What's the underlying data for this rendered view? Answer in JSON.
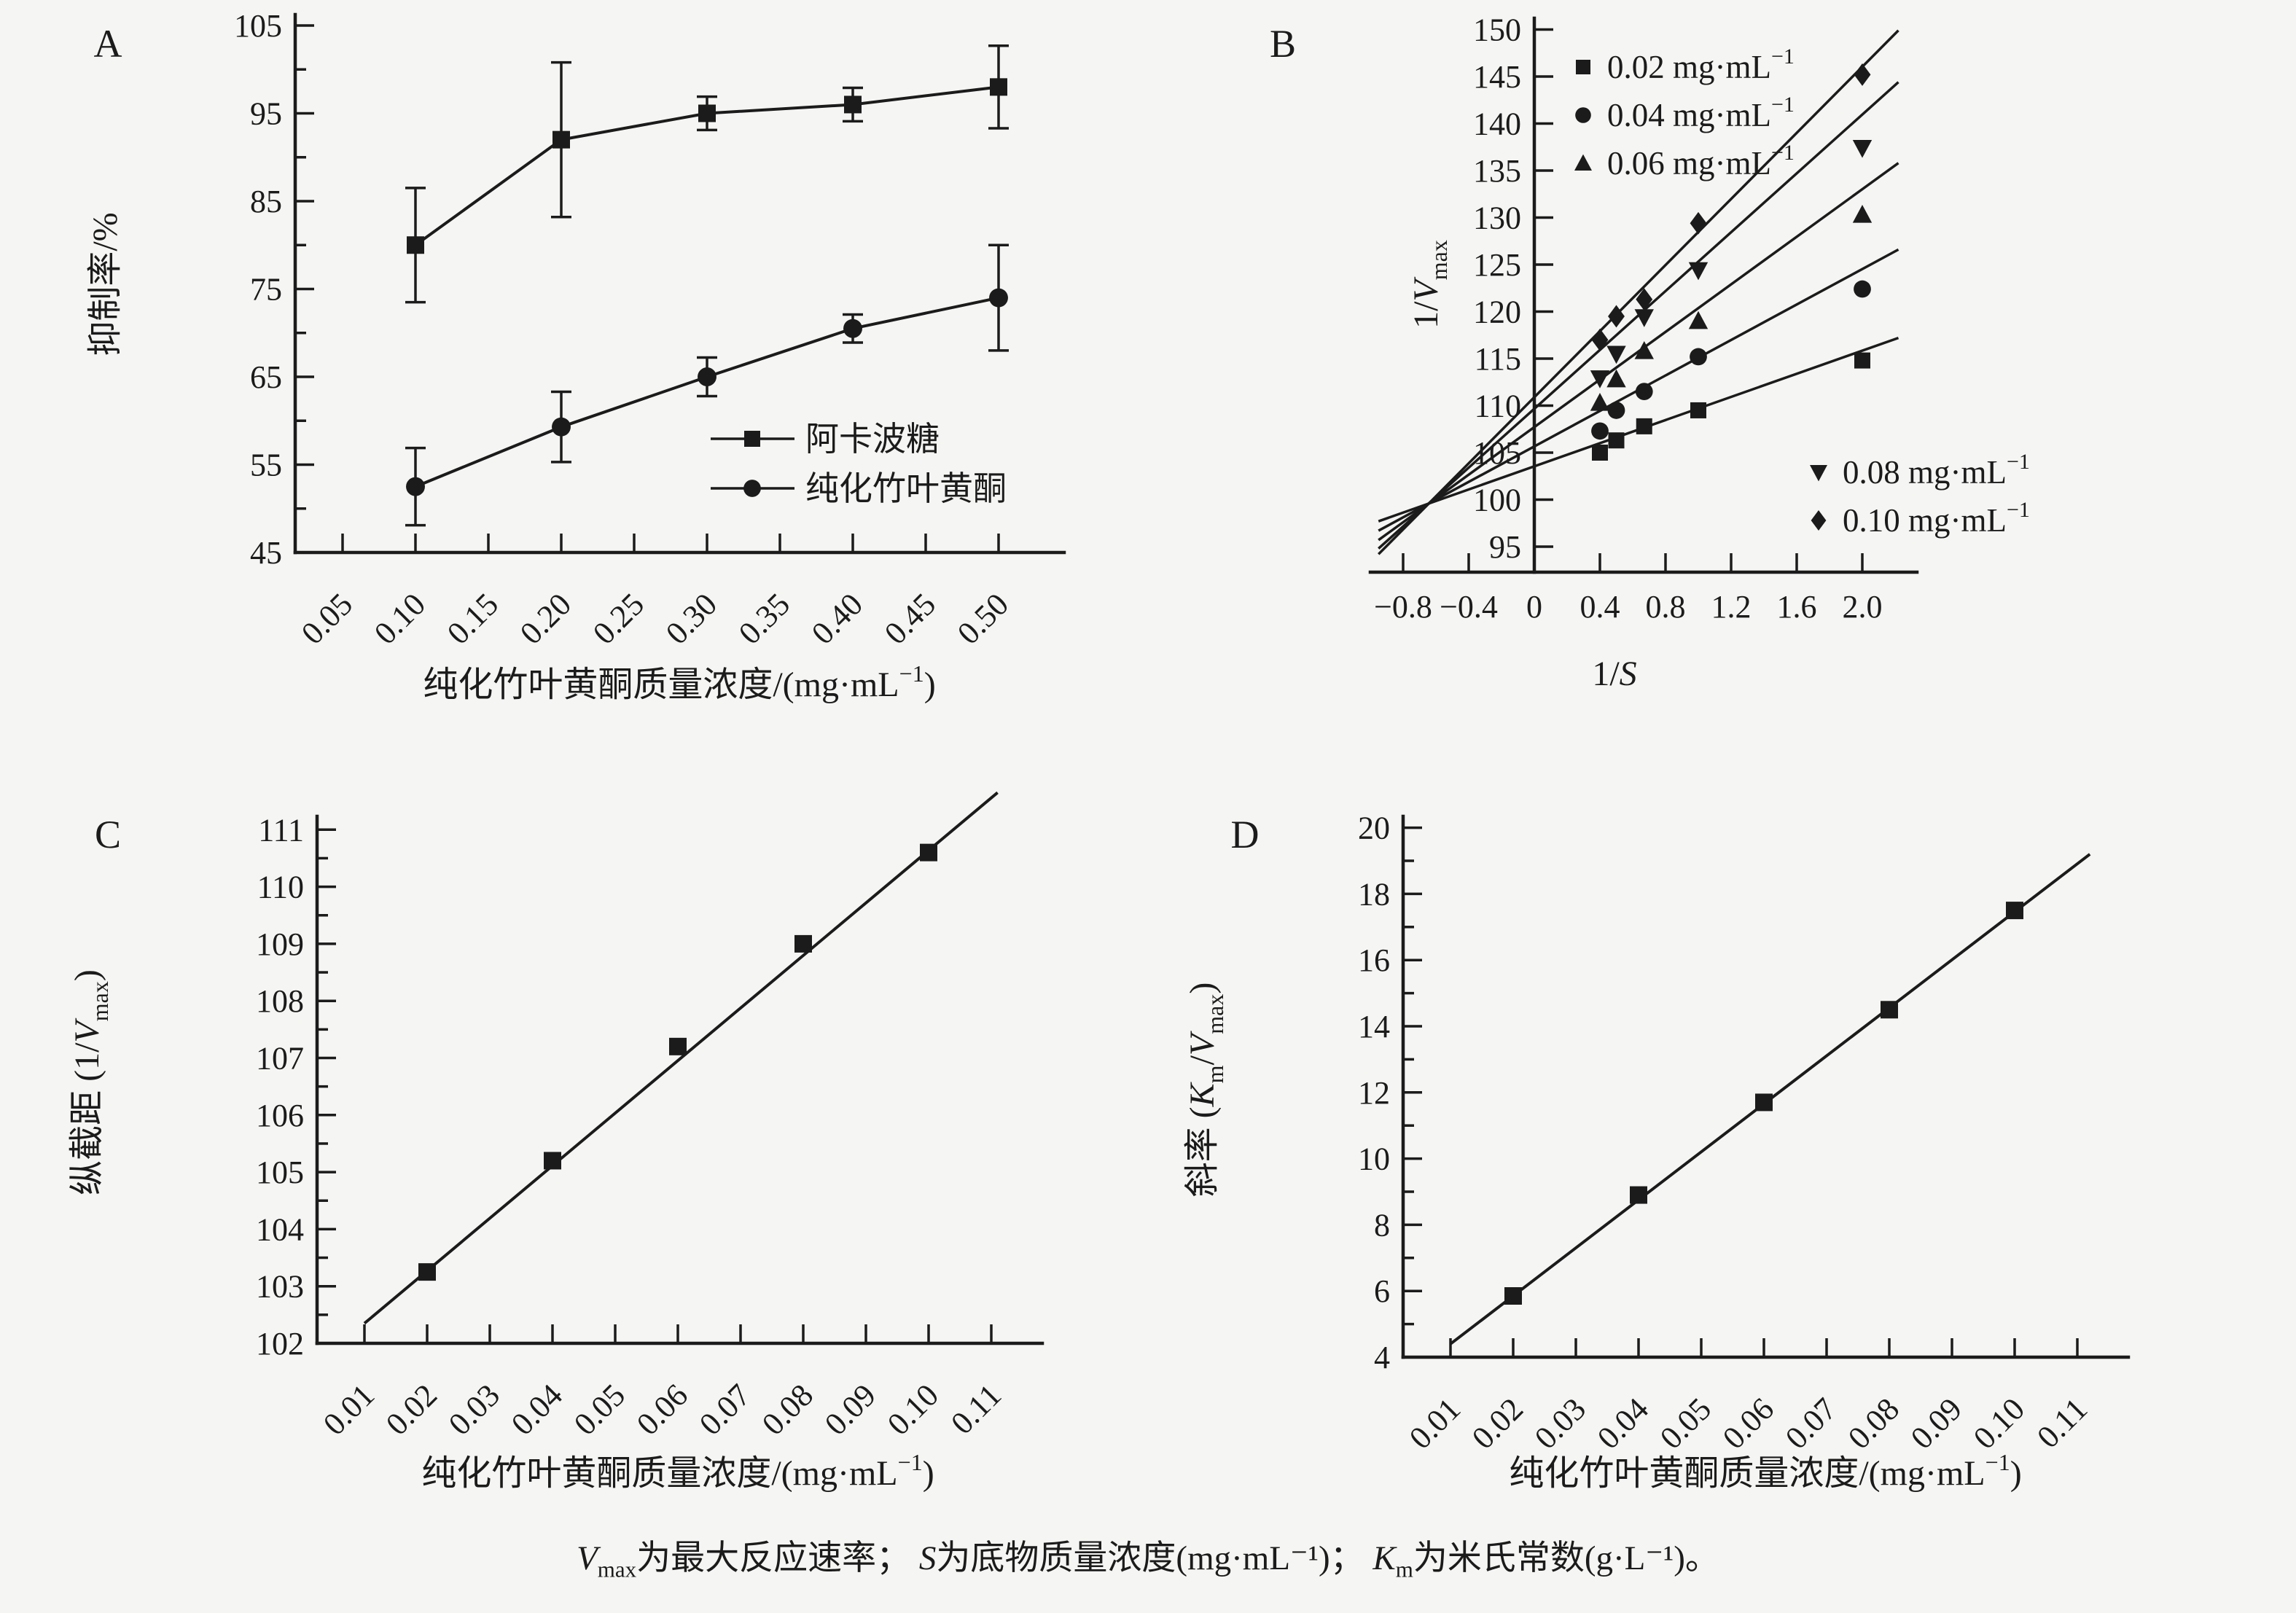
{
  "figure": {
    "background": "#f5f5f3",
    "ink": "#1b1b1b",
    "caption_text": "Vmax为最大反应速率； S为底物质量浓度(mg·mL⁻¹)； Km为米氏常数(g·L⁻¹)。",
    "caption": {
      "v": {
        "sym": "V",
        "sub": "max",
        "text": "为最大反应速率； "
      },
      "s": {
        "sym": "S",
        "text": "为底物质量浓度(mg·mL⁻¹)； "
      },
      "k": {
        "sym": "K",
        "sub": "m",
        "text": "为米氏常数(g·L⁻¹)。"
      }
    }
  },
  "chart_data": [
    {
      "id": "A",
      "type": "line",
      "panel_label": "A",
      "ylabel_text": "抑制率/%",
      "xlabel_text": "纯化竹叶黄酮质量浓度/(mg·mL⁻¹)",
      "ylabel_parts": [
        {
          "t": "抑制率/%"
        }
      ],
      "xlabel_parts": [
        {
          "t": "纯化竹叶黄酮质量浓度/(mg·mL"
        },
        {
          "t": "−1",
          "sup": true
        },
        {
          "t": ")"
        }
      ],
      "ylim": [
        45,
        105
      ],
      "xlim": [
        0.05,
        0.5
      ],
      "grid": false,
      "y_ticks": [
        {
          "v": 45,
          "l": "45"
        },
        {
          "v": 55,
          "l": "55"
        },
        {
          "v": 65,
          "l": "65"
        },
        {
          "v": 75,
          "l": "75"
        },
        {
          "v": 85,
          "l": "85"
        },
        {
          "v": 95,
          "l": "95"
        },
        {
          "v": 105,
          "l": "105"
        }
      ],
      "y_minor": [
        50,
        60,
        70,
        80,
        90,
        100
      ],
      "x_ticks": [
        {
          "v": 0.05,
          "l": "0.05"
        },
        {
          "v": 0.1,
          "l": "0.10"
        },
        {
          "v": 0.15,
          "l": "0.15"
        },
        {
          "v": 0.2,
          "l": "0.20"
        },
        {
          "v": 0.25,
          "l": "0.25"
        },
        {
          "v": 0.3,
          "l": "0.30"
        },
        {
          "v": 0.35,
          "l": "0.35"
        },
        {
          "v": 0.4,
          "l": "0.40"
        },
        {
          "v": 0.45,
          "l": "0.45"
        },
        {
          "v": 0.5,
          "l": "0.50"
        }
      ],
      "legend_position": "inside-right-middle",
      "series": [
        {
          "name": "阿卡波糖",
          "marker": "square",
          "x": [
            0.1,
            0.2,
            0.3,
            0.4,
            0.5
          ],
          "y": [
            80,
            92,
            95,
            96,
            98
          ],
          "err": [
            6.5,
            8.8,
            1.9,
            1.9,
            4.7
          ]
        },
        {
          "name": "纯化竹叶黄酮",
          "marker": "circle",
          "x": [
            0.1,
            0.2,
            0.3,
            0.4,
            0.5
          ],
          "y": [
            52.5,
            59.3,
            65,
            70.5,
            74
          ],
          "err": [
            4.4,
            4,
            2.2,
            1.6,
            6
          ]
        }
      ]
    },
    {
      "id": "B",
      "type": "scatter",
      "panel_label": "B",
      "ylabel_text": "1/Vmax",
      "xlabel_text": "1/S",
      "ylabel_parts": [
        {
          "t": "1/"
        },
        {
          "t": "V",
          "it": true
        },
        {
          "t": "max",
          "sub": true
        }
      ],
      "xlabel_parts": [
        {
          "t": "1/"
        },
        {
          "t": "S",
          "it": true
        }
      ],
      "ylim": [
        95,
        150
      ],
      "xlim": [
        -0.8,
        2.0
      ],
      "grid": false,
      "y_ticks": [
        {
          "v": 95,
          "l": "95"
        },
        {
          "v": 100,
          "l": "100"
        },
        {
          "v": 105,
          "l": "105"
        },
        {
          "v": 110,
          "l": "110"
        },
        {
          "v": 115,
          "l": "115"
        },
        {
          "v": 120,
          "l": "120"
        },
        {
          "v": 125,
          "l": "125"
        },
        {
          "v": 130,
          "l": "130"
        },
        {
          "v": 135,
          "l": "135"
        },
        {
          "v": 140,
          "l": "140"
        },
        {
          "v": 145,
          "l": "145"
        },
        {
          "v": 150,
          "l": "150"
        }
      ],
      "x_ticks": [
        {
          "v": -0.8,
          "l": "−0.8"
        },
        {
          "v": -0.4,
          "l": "−0.4"
        },
        {
          "v": 0,
          "l": "0"
        },
        {
          "v": 0.4,
          "l": "0.4"
        },
        {
          "v": 0.8,
          "l": "0.8"
        },
        {
          "v": 1.2,
          "l": "1.2"
        },
        {
          "v": 1.6,
          "l": "1.6"
        },
        {
          "v": 2.0,
          "l": "2.0"
        }
      ],
      "x_values_1_over_S": [
        0.4,
        0.5,
        0.67,
        1.0,
        2.0
      ],
      "series": [
        {
          "label_text": "0.02 mg·mL⁻¹",
          "label_parts": [
            {
              "t": "0.02 mg·mL"
            },
            {
              "t": "−1",
              "sup": true
            }
          ],
          "marker": "square",
          "points": [
            [
              0.4,
              105.0
            ],
            [
              0.5,
              106.3
            ],
            [
              0.67,
              107.8
            ],
            [
              1.0,
              109.5
            ],
            [
              2.0,
              114.8
            ]
          ],
          "line": {
            "x1": -0.95,
            "y1": 97.7,
            "x2": 2.22,
            "y2": 117.2
          }
        },
        {
          "label_text": "0.04 mg·mL⁻¹",
          "label_parts": [
            {
              "t": "0.04 mg·mL"
            },
            {
              "t": "−1",
              "sup": true
            }
          ],
          "marker": "circle",
          "points": [
            [
              0.4,
              107.3
            ],
            [
              0.5,
              109.5
            ],
            [
              0.67,
              111.5
            ],
            [
              1.0,
              115.2
            ],
            [
              2.0,
              122.4
            ]
          ],
          "line": {
            "x1": -0.95,
            "y1": 96.7,
            "x2": 2.22,
            "y2": 126.6
          }
        },
        {
          "label_text": "0.06 mg·mL⁻¹",
          "label_parts": [
            {
              "t": "0.06 mg·mL"
            },
            {
              "t": "−1",
              "sup": true
            }
          ],
          "marker": "triangle-up",
          "points": [
            [
              0.4,
              110.3
            ],
            [
              0.5,
              112.8
            ],
            [
              0.67,
              115.8
            ],
            [
              1.0,
              119.0
            ],
            [
              2.0,
              130.3
            ]
          ],
          "line": {
            "x1": -0.95,
            "y1": 95.7,
            "x2": 2.22,
            "y2": 135.8
          }
        },
        {
          "label_text": "0.08 mg·mL⁻¹",
          "label_parts": [
            {
              "t": "0.08 mg·mL"
            },
            {
              "t": "−1",
              "sup": true
            }
          ],
          "marker": "triangle-down",
          "points": [
            [
              0.4,
              112.9
            ],
            [
              0.5,
              115.5
            ],
            [
              0.67,
              119.4
            ],
            [
              1.0,
              124.4
            ],
            [
              2.0,
              137.4
            ]
          ],
          "line": {
            "x1": -0.95,
            "y1": 94.8,
            "x2": 2.22,
            "y2": 144.4
          }
        },
        {
          "label_text": "0.10 mg·mL⁻¹",
          "label_parts": [
            {
              "t": "0.10 mg·mL"
            },
            {
              "t": "−1",
              "sup": true
            }
          ],
          "marker": "diamond",
          "points": [
            [
              0.4,
              117.0
            ],
            [
              0.5,
              119.5
            ],
            [
              0.67,
              121.3
            ],
            [
              1.0,
              129.4
            ],
            [
              2.0,
              145.2
            ]
          ],
          "line": {
            "x1": -0.95,
            "y1": 94.2,
            "x2": 2.22,
            "y2": 149.9
          }
        }
      ],
      "legend_top_series": [
        0,
        1,
        2
      ],
      "legend_bottom_series": [
        3,
        4
      ]
    },
    {
      "id": "C",
      "type": "scatter",
      "panel_label": "C",
      "ylabel_text": "纵截距 (1/Vmax)",
      "xlabel_text": "纯化竹叶黄酮质量浓度/(mg·mL⁻¹)",
      "ylabel_parts": [
        {
          "t": "纵截距 (1/"
        },
        {
          "t": "V",
          "it": true
        },
        {
          "t": "max",
          "sub": true
        },
        {
          "t": ")"
        }
      ],
      "xlabel_parts": [
        {
          "t": "纯化竹叶黄酮质量浓度/(mg·mL"
        },
        {
          "t": "−1",
          "sup": true
        },
        {
          "t": ")"
        }
      ],
      "ylim": [
        102,
        111
      ],
      "xlim": [
        0.01,
        0.11
      ],
      "grid": false,
      "y_ticks": [
        {
          "v": 102,
          "l": "102"
        },
        {
          "v": 103,
          "l": "103"
        },
        {
          "v": 104,
          "l": "104"
        },
        {
          "v": 105,
          "l": "105"
        },
        {
          "v": 106,
          "l": "106"
        },
        {
          "v": 107,
          "l": "107"
        },
        {
          "v": 108,
          "l": "108"
        },
        {
          "v": 109,
          "l": "109"
        },
        {
          "v": 110,
          "l": "110"
        },
        {
          "v": 111,
          "l": "111"
        }
      ],
      "y_minor": [
        102.5,
        103.5,
        104.5,
        105.5,
        106.5,
        107.5,
        108.5,
        109.5,
        110.5
      ],
      "x_ticks": [
        {
          "v": 0.01,
          "l": "0.01"
        },
        {
          "v": 0.02,
          "l": "0.02"
        },
        {
          "v": 0.03,
          "l": "0.03"
        },
        {
          "v": 0.04,
          "l": "0.04"
        },
        {
          "v": 0.05,
          "l": "0.05"
        },
        {
          "v": 0.06,
          "l": "0.06"
        },
        {
          "v": 0.07,
          "l": "0.07"
        },
        {
          "v": 0.08,
          "l": "0.08"
        },
        {
          "v": 0.09,
          "l": "0.09"
        },
        {
          "v": 0.1,
          "l": "0.10"
        },
        {
          "v": 0.11,
          "l": "0.11"
        }
      ],
      "marker": "square",
      "points": [
        [
          0.02,
          103.25
        ],
        [
          0.04,
          105.2
        ],
        [
          0.06,
          107.2
        ],
        [
          0.08,
          109.0
        ],
        [
          0.1,
          110.6
        ]
      ],
      "line": {
        "x1": 0.01,
        "y1": 102.35,
        "x2": 0.111,
        "y2": 111.65
      }
    },
    {
      "id": "D",
      "type": "scatter",
      "panel_label": "D",
      "ylabel_text": "斜率 (Km/Vmax)",
      "xlabel_text": "纯化竹叶黄酮质量浓度/(mg·mL⁻¹)",
      "ylabel_parts": [
        {
          "t": "斜率 ("
        },
        {
          "t": "K",
          "it": true
        },
        {
          "t": "m",
          "sub": true
        },
        {
          "t": "/"
        },
        {
          "t": "V",
          "it": true
        },
        {
          "t": "max",
          "sub": true
        },
        {
          "t": ")"
        }
      ],
      "xlabel_parts": [
        {
          "t": "纯化竹叶黄酮质量浓度/(mg·mL"
        },
        {
          "t": "−1",
          "sup": true
        },
        {
          "t": ")"
        }
      ],
      "ylim": [
        4,
        20
      ],
      "xlim": [
        0.01,
        0.11
      ],
      "grid": false,
      "y_ticks": [
        {
          "v": 4,
          "l": "4"
        },
        {
          "v": 6,
          "l": "6"
        },
        {
          "v": 8,
          "l": "8"
        },
        {
          "v": 10,
          "l": "10"
        },
        {
          "v": 12,
          "l": "12"
        },
        {
          "v": 14,
          "l": "14"
        },
        {
          "v": 16,
          "l": "16"
        },
        {
          "v": 18,
          "l": "18"
        },
        {
          "v": 20,
          "l": "20"
        }
      ],
      "y_minor": [
        5,
        7,
        9,
        11,
        13,
        15,
        17,
        19
      ],
      "x_ticks": [
        {
          "v": 0.01,
          "l": "0.01"
        },
        {
          "v": 0.02,
          "l": "0.02"
        },
        {
          "v": 0.03,
          "l": "0.03"
        },
        {
          "v": 0.04,
          "l": "0.04"
        },
        {
          "v": 0.05,
          "l": "0.05"
        },
        {
          "v": 0.06,
          "l": "0.06"
        },
        {
          "v": 0.07,
          "l": "0.07"
        },
        {
          "v": 0.08,
          "l": "0.08"
        },
        {
          "v": 0.09,
          "l": "0.09"
        },
        {
          "v": 0.1,
          "l": "0.10"
        },
        {
          "v": 0.11,
          "l": "0.11"
        }
      ],
      "marker": "square",
      "points": [
        [
          0.02,
          5.85
        ],
        [
          0.04,
          8.9
        ],
        [
          0.06,
          11.7
        ],
        [
          0.08,
          14.5
        ],
        [
          0.1,
          17.5
        ]
      ],
      "line": {
        "x1": 0.01,
        "y1": 4.4,
        "x2": 0.112,
        "y2": 19.2
      }
    }
  ]
}
